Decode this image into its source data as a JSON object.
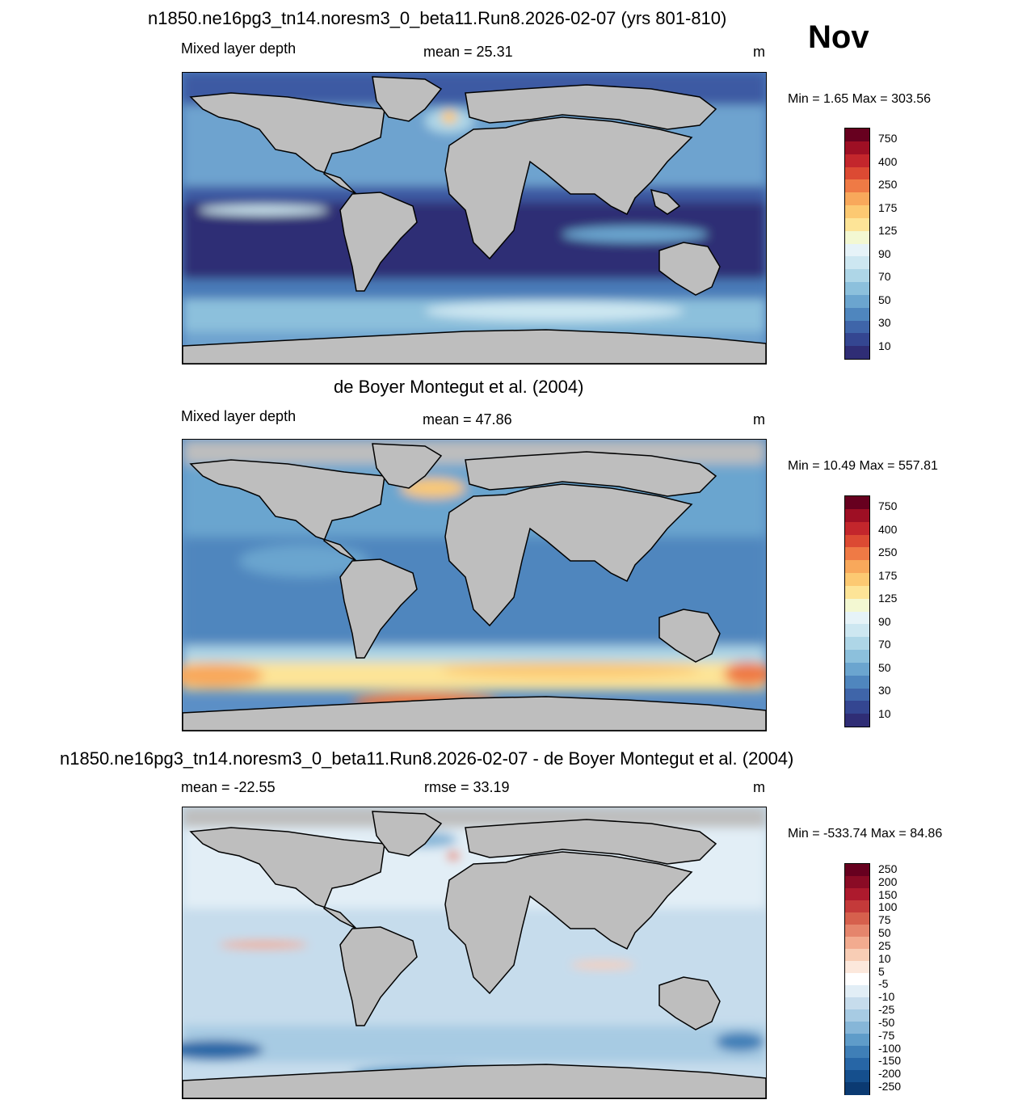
{
  "figure": {
    "month": "Nov",
    "title_model": "n1850.ne16pg3_tn14.noresm3_0_beta11.Run8.2026-02-07 (yrs 801-810)",
    "title_obs": "de Boyer Montegut et al. (2004)",
    "title_diff": "n1850.ne16pg3_tn14.noresm3_0_beta11.Run8.2026-02-07 - de Boyer Montegut et al. (2004)"
  },
  "panels": [
    {
      "variable": "Mixed layer depth",
      "stat_text": "mean =  25.31",
      "units": "m",
      "minmax": "Min =   1.65 Max = 303.56"
    },
    {
      "variable": "Mixed layer depth",
      "stat_text": "mean =  47.86",
      "units": "m",
      "minmax": "Min =  10.49 Max = 557.81"
    },
    {
      "variable": "",
      "stat_text": "mean = -22.55",
      "stat_text2": "rmse =  33.19",
      "units": "m",
      "minmax": "Min = -533.74 Max =  84.86"
    }
  ],
  "colorbars": {
    "abs_labels": [
      "750",
      "400",
      "250",
      "175",
      "125",
      "90",
      "70",
      "50",
      "30",
      "10"
    ],
    "abs_colors": [
      "#67001f",
      "#9e0f24",
      "#c3262c",
      "#dc4a33",
      "#ef7a45",
      "#f8a85b",
      "#fcc972",
      "#fde497",
      "#f3f8d2",
      "#e6f3f8",
      "#cde7f1",
      "#aed6e7",
      "#8cc0dc",
      "#6ba5cf",
      "#4f86be",
      "#3f65a9",
      "#344691",
      "#2f2d75"
    ],
    "diff_labels": [
      "250",
      "200",
      "150",
      "100",
      "75",
      "50",
      "25",
      "10",
      "5",
      "-5",
      "-10",
      "-25",
      "-50",
      "-75",
      "-100",
      "-150",
      "-200",
      "-250"
    ],
    "diff_colors": [
      "#67001f",
      "#8a0b25",
      "#ad1a2d",
      "#c43a3a",
      "#d6604d",
      "#e5856c",
      "#f2ab8f",
      "#f8cdb5",
      "#fce8dc",
      "#ffffff",
      "#e2eef6",
      "#c6dcec",
      "#a7cbe3",
      "#86b6d8",
      "#5f9cc9",
      "#3f7fb7",
      "#2766a6",
      "#154f8d",
      "#0b3a72"
    ]
  },
  "chart_data": {
    "type": "heatmap",
    "panels": [
      {
        "name": "model",
        "mean": 25.31,
        "min": 1.65,
        "max": 303.56,
        "units": "m"
      },
      {
        "name": "observations",
        "mean": 47.86,
        "min": 10.49,
        "max": 557.81,
        "units": "m"
      },
      {
        "name": "difference",
        "mean": -22.55,
        "rmse": 33.19,
        "min": -533.74,
        "max": 84.86,
        "units": "m"
      }
    ],
    "abs_contour_levels": [
      10,
      30,
      50,
      70,
      90,
      125,
      175,
      250,
      400,
      750
    ],
    "diff_contour_levels": [
      -250,
      -200,
      -150,
      -100,
      -75,
      -50,
      -25,
      -10,
      -5,
      5,
      10,
      25,
      50,
      75,
      100,
      150,
      200,
      250
    ]
  }
}
